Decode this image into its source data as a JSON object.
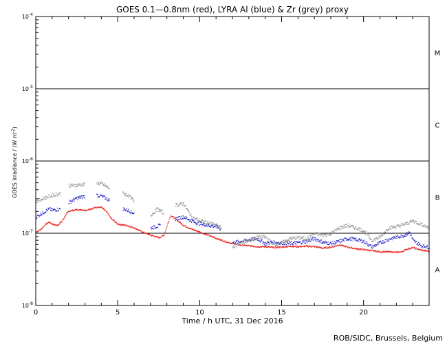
{
  "chart_data": {
    "type": "scatter",
    "title": "GOES 0.1—0.8nm (red), LYRA Al (blue) & Zr (grey) proxy",
    "xlabel": "Time / h UTC, 31 Dec 2016",
    "ylabel": "GOES Irradiance / (W m",
    "ylabel_sup": "-2",
    "ylabel_close": ")",
    "xlim": [
      0,
      24
    ],
    "ylim": [
      1e-08,
      0.0001
    ],
    "y_scale": "log",
    "x_ticks": [
      0,
      5,
      10,
      15,
      20
    ],
    "x_tick_labels": [
      "0",
      "5",
      "10",
      "15",
      "20"
    ],
    "y_ticks": [
      1e-08,
      1e-07,
      1e-06,
      1e-05,
      0.0001
    ],
    "y_tick_labels": [
      {
        "base": "10",
        "exp": "-8"
      },
      {
        "base": "10",
        "exp": "-7"
      },
      {
        "base": "10",
        "exp": "-6"
      },
      {
        "base": "10",
        "exp": "-5"
      },
      {
        "base": "10",
        "exp": "-4"
      }
    ],
    "flare_class_lines": [
      1e-07,
      1e-06,
      1e-05
    ],
    "flare_classes": [
      {
        "label": "A",
        "y": 3.16e-08
      },
      {
        "label": "B",
        "y": 3.16e-07
      },
      {
        "label": "C",
        "y": 3.16e-06
      },
      {
        "label": "M",
        "y": 3.16e-05
      }
    ],
    "series": [
      {
        "name": "GOES 0.1-0.8nm",
        "color": "#e8201a",
        "x": [
          0.0,
          0.3,
          0.5,
          0.8,
          1.0,
          1.3,
          1.6,
          1.8,
          2.0,
          2.5,
          3.0,
          3.5,
          3.8,
          4.0,
          4.3,
          4.6,
          5.0,
          5.5,
          6.0,
          6.5,
          7.0,
          7.5,
          7.8,
          8.0,
          8.2,
          8.5,
          9.0,
          9.5,
          10.0,
          10.5,
          11.0,
          11.5,
          12.0,
          12.5,
          13.0,
          13.5,
          14.0,
          14.5,
          15.0,
          15.5,
          16.0,
          16.5,
          17.0,
          17.5,
          18.0,
          18.5,
          19.0,
          19.5,
          20.0,
          20.5,
          21.0,
          21.5,
          22.0,
          22.3,
          22.6,
          23.0,
          23.5,
          24.0
        ],
        "y": [
          1.05e-07,
          1.15e-07,
          1.3e-07,
          1.45e-07,
          1.35e-07,
          1.3e-07,
          1.5e-07,
          1.8e-07,
          2.05e-07,
          2.15e-07,
          2.1e-07,
          2.25e-07,
          2.35e-07,
          2.3e-07,
          2e-07,
          1.6e-07,
          1.35e-07,
          1.3e-07,
          1.2e-07,
          1.05e-07,
          9.5e-08,
          8.8e-08,
          9.5e-08,
          1.3e-07,
          1.8e-07,
          1.6e-07,
          1.3e-07,
          1.15e-07,
          1.05e-07,
          9.5e-08,
          8.6e-08,
          7.8e-08,
          7.3e-08,
          6.9e-08,
          6.8e-08,
          6.6e-08,
          6.6e-08,
          6.4e-08,
          6.5e-08,
          6.7e-08,
          6.6e-08,
          6.7e-08,
          6.6e-08,
          6.3e-08,
          6.5e-08,
          7e-08,
          6.5e-08,
          6.2e-08,
          6e-08,
          5.8e-08,
          5.6e-08,
          5.6e-08,
          5.5e-08,
          5.6e-08,
          6.1e-08,
          6.4e-08,
          5.9e-08,
          5.7e-08
        ]
      },
      {
        "name": "LYRA Al proxy",
        "color": "#1a1ac8",
        "x": [
          0.0,
          0.5,
          0.8,
          1.0,
          1.5,
          1.9,
          2.0,
          2.5,
          3.0,
          3.3,
          3.7,
          4.0,
          4.5,
          5.0,
          5.3,
          5.6,
          6.0,
          6.6,
          7.0,
          7.6,
          8.1,
          8.5,
          9.0,
          9.8,
          10.5,
          11.0,
          11.3,
          11.6,
          12.0,
          12.5,
          13.0,
          13.5,
          14.0,
          14.3,
          15.5,
          16.0,
          16.5,
          17.0,
          17.5,
          18.0,
          18.5,
          19.0,
          19.5,
          20.0,
          20.5,
          21.0,
          21.5,
          22.0,
          22.5,
          22.8,
          23.0,
          23.5,
          24.0
        ],
        "y": [
          1.7e-07,
          2e-07,
          2.2e-07,
          2.1e-07,
          2.2e-07,
          null,
          2.7e-07,
          3.1e-07,
          3.3e-07,
          null,
          3.4e-07,
          3.3e-07,
          2.9e-07,
          null,
          2.2e-07,
          2.1e-07,
          1.9e-07,
          null,
          1.2e-07,
          1.3e-07,
          null,
          1.6e-07,
          1.7e-07,
          1.4e-07,
          1.3e-07,
          1.25e-07,
          1.15e-07,
          null,
          7.5e-08,
          7.8e-08,
          8.2e-08,
          8.5e-08,
          7.2e-08,
          7.6e-08,
          7.3e-08,
          7.5e-08,
          7.8e-08,
          8.5e-08,
          7.6e-08,
          7.3e-08,
          7.8e-08,
          8.5e-08,
          8.3e-08,
          7.8e-08,
          6.5e-08,
          7.5e-08,
          8.3e-08,
          9e-08,
          9.5e-08,
          1.05e-07,
          8e-08,
          6.8e-08,
          6.5e-08
        ]
      },
      {
        "name": "LYRA Zr proxy",
        "color": "#8a8a8a",
        "x": [
          0.0,
          0.5,
          1.0,
          1.5,
          1.9,
          2.0,
          2.5,
          3.0,
          3.3,
          3.7,
          4.0,
          4.5,
          5.0,
          5.3,
          5.6,
          6.0,
          6.6,
          7.0,
          7.4,
          7.8,
          8.1,
          8.5,
          9.0,
          9.5,
          10.0,
          10.5,
          11.0,
          11.3,
          11.6,
          12.0,
          12.5,
          13.0,
          13.5,
          14.0,
          14.5,
          15.0,
          15.5,
          16.0,
          16.5,
          17.0,
          17.5,
          18.0,
          18.5,
          19.0,
          19.5,
          20.0,
          20.5,
          21.0,
          21.5,
          22.0,
          22.5,
          23.0,
          23.5,
          24.0
        ],
        "y": [
          2.8e-07,
          3.1e-07,
          3.4e-07,
          3.6e-07,
          null,
          4.6e-07,
          4.7e-07,
          4.8e-07,
          null,
          5e-07,
          4.9e-07,
          4.2e-07,
          null,
          3.6e-07,
          3.4e-07,
          2.8e-07,
          null,
          1.8e-07,
          2.2e-07,
          1.9e-07,
          null,
          2.5e-07,
          2.6e-07,
          1.7e-07,
          1.5e-07,
          1.4e-07,
          1.3e-07,
          1.2e-07,
          null,
          6.5e-08,
          7.5e-08,
          8e-08,
          9e-08,
          9e-08,
          7e-08,
          7.5e-08,
          8.5e-08,
          8.8e-08,
          8.5e-08,
          1e-07,
          9.5e-08,
          1e-07,
          1.2e-07,
          1.3e-07,
          1.2e-07,
          1.1e-07,
          8e-08,
          9e-08,
          1.2e-07,
          1.25e-07,
          1.35e-07,
          1.5e-07,
          1.35e-07,
          1.2e-07
        ]
      }
    ]
  },
  "credit": "ROB/SIDC, Brussels, Belgium"
}
